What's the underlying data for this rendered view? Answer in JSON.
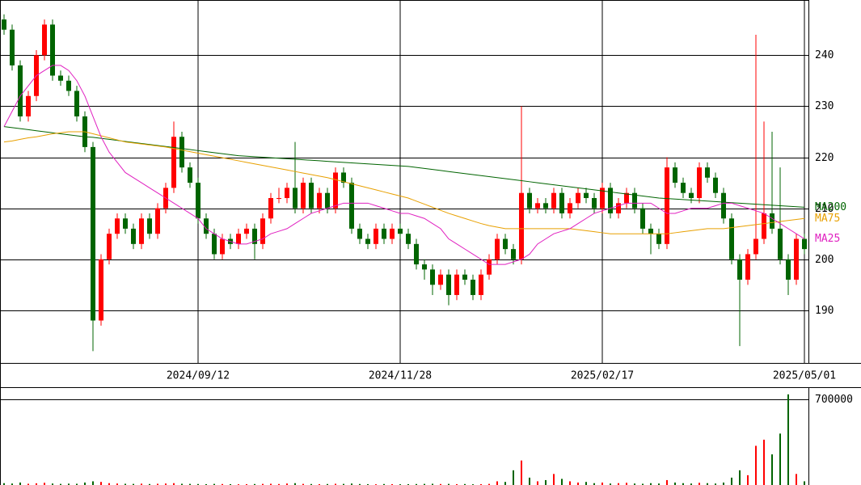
{
  "chart_data": [
    {
      "type": "candlestick",
      "categories": [
        null,
        null,
        null,
        null,
        null,
        null,
        null,
        null,
        null,
        null,
        null,
        null,
        null,
        null,
        null,
        null,
        null,
        null,
        null,
        null,
        null,
        null,
        null,
        null,
        "2024/09/12",
        null,
        null,
        null,
        null,
        null,
        null,
        null,
        null,
        null,
        null,
        null,
        null,
        null,
        null,
        null,
        null,
        null,
        null,
        null,
        null,
        null,
        null,
        null,
        null,
        "2024/11/28",
        null,
        null,
        null,
        null,
        null,
        null,
        null,
        null,
        null,
        null,
        null,
        null,
        null,
        null,
        null,
        null,
        null,
        null,
        null,
        null,
        null,
        null,
        null,
        null,
        "2025/02/17",
        null,
        null,
        null,
        null,
        null,
        null,
        null,
        null,
        null,
        null,
        null,
        null,
        null,
        null,
        null,
        null,
        null,
        null,
        null,
        null,
        null,
        null,
        null,
        null,
        "2025/05/01"
      ],
      "open": [
        247,
        245,
        238,
        228,
        232,
        240,
        246,
        236,
        235,
        233,
        228,
        222,
        188,
        200,
        205,
        208,
        206,
        203,
        208,
        205,
        210,
        214,
        224,
        218,
        215,
        208,
        205,
        201,
        204,
        203,
        205,
        206,
        203,
        208,
        212,
        212,
        214,
        210,
        215,
        210,
        213,
        210,
        217,
        215,
        206,
        204,
        203,
        206,
        204,
        206,
        205,
        203,
        199,
        198,
        195,
        197,
        193,
        197,
        196,
        193,
        197,
        200,
        204,
        202,
        200,
        213,
        210,
        211,
        210,
        213,
        209,
        211,
        213,
        212,
        210,
        214,
        209,
        211,
        213,
        210,
        206,
        205,
        203,
        218,
        215,
        213,
        212,
        218,
        216,
        213,
        208,
        200,
        196,
        201,
        204,
        209,
        206,
        200,
        196,
        204
      ],
      "high": [
        248,
        246,
        239,
        233,
        241,
        247,
        247,
        237,
        236,
        234,
        229,
        223,
        201,
        206,
        209,
        209,
        207,
        209,
        209,
        211,
        215,
        227,
        225,
        219,
        216,
        209,
        206,
        205,
        205,
        206,
        207,
        207,
        209,
        213,
        214,
        215,
        223,
        216,
        216,
        214,
        214,
        218,
        218,
        216,
        207,
        205,
        207,
        207,
        207,
        207,
        206,
        204,
        200,
        199,
        198,
        198,
        198,
        198,
        197,
        198,
        201,
        205,
        205,
        203,
        230,
        214,
        212,
        212,
        214,
        214,
        212,
        214,
        214,
        213,
        215,
        215,
        212,
        214,
        214,
        211,
        207,
        206,
        220,
        219,
        216,
        214,
        219,
        219,
        217,
        214,
        209,
        201,
        202,
        244,
        227,
        225,
        218,
        201,
        205,
        205
      ],
      "low": [
        244,
        237,
        227,
        227,
        231,
        239,
        235,
        234,
        232,
        227,
        221,
        182,
        187,
        199,
        204,
        205,
        202,
        202,
        204,
        204,
        209,
        213,
        217,
        214,
        207,
        204,
        200,
        200,
        202,
        202,
        204,
        200,
        202,
        207,
        211,
        211,
        209,
        209,
        209,
        209,
        209,
        209,
        214,
        205,
        203,
        202,
        202,
        203,
        203,
        204,
        202,
        198,
        196,
        193,
        194,
        191,
        192,
        195,
        192,
        192,
        196,
        199,
        201,
        199,
        199,
        209,
        209,
        209,
        209,
        208,
        208,
        210,
        211,
        209,
        209,
        208,
        208,
        210,
        209,
        205,
        201,
        202,
        202,
        214,
        212,
        211,
        211,
        215,
        212,
        207,
        199,
        183,
        195,
        200,
        203,
        205,
        199,
        193,
        195,
        201
      ],
      "close": [
        245,
        238,
        228,
        232,
        240,
        246,
        236,
        235,
        233,
        228,
        222,
        188,
        200,
        205,
        208,
        206,
        203,
        208,
        205,
        210,
        214,
        224,
        218,
        215,
        208,
        205,
        201,
        204,
        203,
        205,
        206,
        203,
        208,
        212,
        212,
        214,
        210,
        215,
        210,
        213,
        210,
        217,
        215,
        206,
        204,
        203,
        206,
        204,
        206,
        205,
        203,
        199,
        198,
        195,
        197,
        193,
        197,
        196,
        193,
        197,
        200,
        204,
        202,
        200,
        213,
        210,
        211,
        210,
        213,
        209,
        211,
        213,
        212,
        210,
        214,
        209,
        211,
        213,
        210,
        206,
        205,
        203,
        218,
        215,
        213,
        212,
        218,
        216,
        213,
        208,
        200,
        196,
        201,
        204,
        209,
        206,
        200,
        196,
        204,
        202
      ],
      "up_color": "#ff0000",
      "down_color": "#006400",
      "series": [
        {
          "name": "MA200",
          "color": "#006400",
          "values": [
            226,
            225.8,
            225.6,
            225.4,
            225.2,
            225,
            224.8,
            224.6,
            224.4,
            224.2,
            224,
            223.9,
            223.7,
            223.5,
            223.3,
            223.1,
            222.9,
            222.7,
            222.5,
            222.3,
            222.1,
            221.9,
            221.7,
            221.5,
            221.3,
            221.1,
            220.9,
            220.7,
            220.5,
            220.3,
            220.2,
            220.1,
            220,
            219.9,
            219.8,
            219.7,
            219.6,
            219.5,
            219.4,
            219.3,
            219.2,
            219.1,
            219,
            218.9,
            218.8,
            218.7,
            218.6,
            218.5,
            218.4,
            218.3,
            218.2,
            218,
            217.8,
            217.6,
            217.4,
            217.2,
            217,
            216.8,
            216.6,
            216.4,
            216.2,
            216,
            215.8,
            215.6,
            215.4,
            215.2,
            215,
            214.8,
            214.6,
            214.4,
            214.2,
            214,
            213.8,
            213.6,
            213.4,
            213.2,
            213,
            212.8,
            212.6,
            212.4,
            212.2,
            212,
            211.9,
            211.8,
            211.7,
            211.6,
            211.5,
            211.4,
            211.3,
            211.2,
            211.1,
            211,
            210.9,
            210.8,
            210.7,
            210.6,
            210.5,
            210.4,
            210.3,
            210.2
          ]
        },
        {
          "name": "MA75",
          "color": "#e8a000",
          "values": [
            223,
            223.2,
            223.5,
            223.8,
            224,
            224.3,
            224.6,
            224.8,
            225,
            225,
            225,
            224.6,
            224.2,
            223.8,
            223.4,
            223,
            222.8,
            222.6,
            222.4,
            222.2,
            222,
            221.7,
            221.4,
            221.1,
            220.8,
            220.5,
            220.2,
            219.9,
            219.6,
            219.3,
            219,
            218.7,
            218.4,
            218.1,
            217.8,
            217.5,
            217.2,
            216.9,
            216.6,
            216.3,
            216,
            215.6,
            215.2,
            214.8,
            214.4,
            214,
            213.6,
            213.2,
            212.8,
            212.4,
            212,
            211.4,
            210.8,
            210.2,
            209.6,
            209,
            208.5,
            208,
            207.5,
            207,
            206.6,
            206.3,
            206,
            206,
            206,
            206,
            206,
            206,
            206,
            206,
            206,
            205.8,
            205.6,
            205.4,
            205.2,
            205,
            205,
            205,
            205,
            205,
            205,
            205,
            205,
            205.2,
            205.4,
            205.6,
            205.8,
            206,
            206,
            206,
            206.2,
            206.4,
            206.6,
            206.8,
            207,
            207.2,
            207.4,
            207.6,
            207.8,
            208
          ]
        },
        {
          "name": "MA25",
          "color": "#e020c0",
          "values": [
            226,
            229,
            232,
            234,
            236,
            237,
            238,
            238,
            237,
            235,
            232,
            228,
            224,
            221,
            219,
            217,
            216,
            215,
            214,
            213,
            212,
            211,
            210,
            209,
            208,
            206,
            205,
            204,
            203.5,
            203,
            203,
            203.5,
            204,
            205,
            205.5,
            206,
            207,
            208,
            209,
            209.5,
            210,
            210.5,
            211,
            211,
            211,
            211,
            210.5,
            210,
            209.5,
            209,
            209,
            208.5,
            208,
            207,
            206,
            204,
            203,
            202,
            201,
            200,
            199,
            199,
            199,
            199.5,
            200,
            201,
            203,
            204,
            205,
            205.5,
            206,
            207,
            208,
            209,
            209.5,
            210,
            210.5,
            211,
            211,
            211,
            211,
            210,
            209,
            209,
            209.5,
            210,
            210,
            210,
            210.5,
            211,
            211,
            210.5,
            210,
            209.5,
            209,
            208,
            207,
            206,
            205,
            204
          ]
        }
      ],
      "ylim": [
        180,
        250.5
      ],
      "yticks": [
        190,
        200,
        210,
        220,
        230,
        240
      ],
      "grid": true
    },
    {
      "type": "bar",
      "values": [
        15000,
        12000,
        20000,
        10000,
        14000,
        18000,
        12000,
        9000,
        11000,
        10000,
        20000,
        30000,
        25000,
        15000,
        12000,
        10000,
        9000,
        11000,
        8000,
        10000,
        12000,
        15000,
        10000,
        9000,
        8000,
        7000,
        9000,
        8000,
        7000,
        6000,
        7000,
        8000,
        9000,
        10000,
        8000,
        12000,
        15000,
        9000,
        8000,
        7000,
        8000,
        10000,
        9000,
        12000,
        8000,
        7000,
        6000,
        8000,
        7000,
        6000,
        7000,
        8000,
        9000,
        10000,
        8000,
        9000,
        7000,
        8000,
        6000,
        7000,
        9000,
        30000,
        25000,
        120000,
        200000,
        60000,
        30000,
        40000,
        90000,
        50000,
        30000,
        20000,
        25000,
        15000,
        20000,
        12000,
        15000,
        18000,
        12000,
        10000,
        15000,
        12000,
        40000,
        20000,
        15000,
        12000,
        18000,
        15000,
        12000,
        20000,
        60000,
        120000,
        80000,
        320000,
        370000,
        250000,
        420000,
        740000,
        90000,
        30000
      ],
      "ylim": [
        0,
        792000
      ],
      "yticks": [
        700000
      ],
      "grid": true
    }
  ]
}
